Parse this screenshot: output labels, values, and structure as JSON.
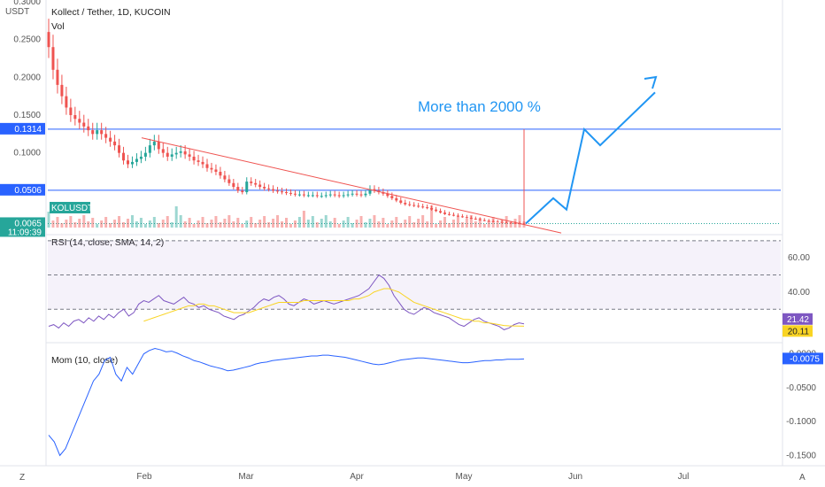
{
  "chart_data": [
    {
      "type": "candlestick",
      "title": "Kollect / Tether, 1D, KUCOIN",
      "volume_label": "Vol",
      "symbol_label": "KOLUSDT",
      "currency_label": "USDT",
      "ylim": [
        0,
        0.3
      ],
      "y_ticks": [
        "0.3000",
        "0.2500",
        "0.2000",
        "0.1500",
        "0.1000"
      ],
      "x_ticks": [
        "Feb",
        "Mar",
        "Apr",
        "May",
        "Jun",
        "Jul"
      ],
      "price_tags": [
        {
          "value": "0.1314",
          "color": "#2962ff"
        },
        {
          "value": "0.0506",
          "color": "#2962ff"
        },
        {
          "value": "0.0065",
          "color": "#26a69a",
          "sub": "11:09:39"
        }
      ],
      "horizontal_levels": [
        0.1314,
        0.0506
      ],
      "current_price": 0.0065,
      "closes": [
        0.24,
        0.21,
        0.19,
        0.175,
        0.16,
        0.15,
        0.145,
        0.14,
        0.135,
        0.13,
        0.125,
        0.13,
        0.125,
        0.12,
        0.115,
        0.11,
        0.1,
        0.09,
        0.085,
        0.088,
        0.092,
        0.095,
        0.1,
        0.11,
        0.115,
        0.105,
        0.1,
        0.095,
        0.098,
        0.1,
        0.102,
        0.098,
        0.095,
        0.09,
        0.088,
        0.085,
        0.08,
        0.078,
        0.075,
        0.07,
        0.065,
        0.06,
        0.055,
        0.05,
        0.048,
        0.062,
        0.06,
        0.058,
        0.055,
        0.053,
        0.052,
        0.05,
        0.049,
        0.048,
        0.047,
        0.046,
        0.045,
        0.045,
        0.044,
        0.044,
        0.044,
        0.043,
        0.043,
        0.044,
        0.045,
        0.044,
        0.043,
        0.044,
        0.045,
        0.046,
        0.045,
        0.044,
        0.046,
        0.052,
        0.05,
        0.048,
        0.046,
        0.043,
        0.04,
        0.037,
        0.034,
        0.032,
        0.031,
        0.03,
        0.029,
        0.028,
        0.027,
        0.025,
        0.023,
        0.021,
        0.019,
        0.018,
        0.017,
        0.016,
        0.015,
        0.014,
        0.013,
        0.012,
        0.011,
        0.01,
        0.0095,
        0.009,
        0.0085,
        0.008,
        0.0075,
        0.007,
        0.0068,
        0.0066,
        0.0065
      ],
      "trendline": {
        "from": [
          0,
          0.12
        ],
        "to": [
          1,
          -0.006
        ]
      },
      "annotation": "More than 2000 %",
      "projection": [
        0.0065,
        0.04,
        0.025,
        0.1314,
        0.11,
        0.18
      ]
    },
    {
      "type": "line",
      "title": "RSI (14, close, SMA, 14, 2)",
      "y_ticks": [
        "60.00",
        "40.00"
      ],
      "ylim": [
        12,
        72
      ],
      "levels": [
        70,
        50,
        30
      ],
      "series": [
        {
          "name": "RSI",
          "color": "#7e57c2",
          "last": "21.42"
        },
        {
          "name": "SMA",
          "color": "#f9d423",
          "last": "20.11"
        }
      ],
      "rsi": [
        20,
        21,
        19,
        22,
        20,
        23,
        24,
        22,
        25,
        23,
        26,
        24,
        27,
        25,
        28,
        30,
        26,
        28,
        33,
        35,
        34,
        36,
        38,
        35,
        34,
        33,
        35,
        37,
        34,
        33,
        31,
        32,
        30,
        29,
        28,
        26,
        25,
        24,
        26,
        27,
        29,
        31,
        34,
        36,
        35,
        37,
        38,
        36,
        33,
        32,
        34,
        36,
        35,
        33,
        34,
        35,
        34,
        33,
        34,
        35,
        36,
        37,
        38,
        40,
        42,
        46,
        50,
        48,
        44,
        38,
        34,
        30,
        28,
        27,
        29,
        31,
        30,
        28,
        27,
        26,
        25,
        23,
        21,
        20,
        22,
        24,
        25,
        23,
        22,
        21,
        20,
        18,
        19,
        21,
        22,
        21.42
      ],
      "sma": [
        null,
        null,
        null,
        null,
        null,
        null,
        null,
        null,
        null,
        null,
        null,
        null,
        null,
        null,
        null,
        null,
        null,
        null,
        null,
        23,
        24,
        25,
        26,
        27,
        28,
        29,
        30,
        31,
        32,
        32,
        33,
        33,
        32,
        32,
        31,
        30,
        29,
        28,
        28,
        28,
        28,
        29,
        30,
        31,
        32,
        33,
        34,
        34,
        34,
        34,
        34,
        35,
        35,
        35,
        35,
        35,
        35,
        35,
        35,
        35,
        35,
        36,
        36,
        37,
        38,
        40,
        41,
        42,
        42,
        41,
        40,
        38,
        36,
        34,
        33,
        32,
        31,
        30,
        29,
        28,
        27,
        26,
        25,
        24,
        24,
        23,
        23,
        22,
        22,
        21.5,
        21,
        20.5,
        20.3,
        20.2,
        20.15,
        20.11
      ]
    },
    {
      "type": "line",
      "title": "Mom (10, close)",
      "y_ticks": [
        "0.0000",
        "-0.0500",
        "-0.1000",
        "-0.1500"
      ],
      "ylim": [
        -0.16,
        0.01
      ],
      "series": [
        {
          "name": "Mom",
          "color": "#2962ff",
          "last": "-0.0075"
        }
      ],
      "values": [
        -0.12,
        -0.13,
        -0.15,
        -0.14,
        -0.12,
        -0.1,
        -0.08,
        -0.06,
        -0.04,
        -0.03,
        -0.01,
        -0.005,
        -0.03,
        -0.04,
        -0.02,
        -0.03,
        -0.015,
        0.0,
        0.005,
        0.008,
        0.006,
        0.003,
        0.004,
        0.001,
        -0.003,
        -0.006,
        -0.01,
        -0.012,
        -0.015,
        -0.018,
        -0.02,
        -0.022,
        -0.025,
        -0.024,
        -0.022,
        -0.02,
        -0.018,
        -0.015,
        -0.013,
        -0.012,
        -0.01,
        -0.009,
        -0.008,
        -0.007,
        -0.006,
        -0.005,
        -0.004,
        -0.003,
        -0.003,
        -0.002,
        -0.002,
        -0.003,
        -0.004,
        -0.005,
        -0.007,
        -0.009,
        -0.011,
        -0.013,
        -0.015,
        -0.016,
        -0.015,
        -0.013,
        -0.011,
        -0.009,
        -0.008,
        -0.007,
        -0.006,
        -0.006,
        -0.007,
        -0.008,
        -0.009,
        -0.01,
        -0.011,
        -0.012,
        -0.013,
        -0.013,
        -0.012,
        -0.011,
        -0.01,
        -0.01,
        -0.009,
        -0.009,
        -0.008,
        -0.008,
        -0.008,
        -0.0075
      ]
    }
  ],
  "ui": {
    "scale_mode_left": "Z",
    "scale_mode_right": "A"
  }
}
